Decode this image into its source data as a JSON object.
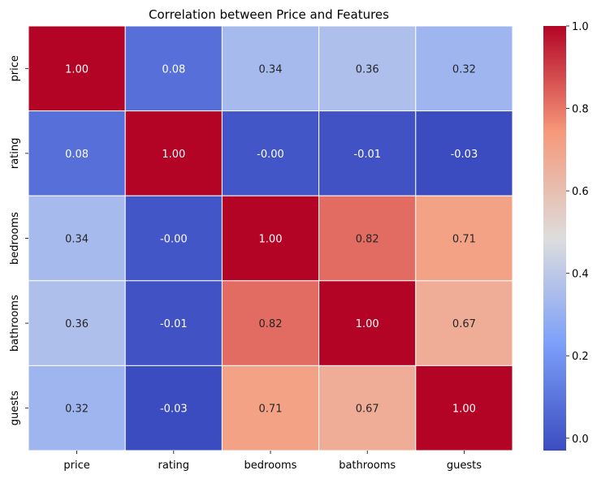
{
  "chart_data": {
    "type": "heatmap",
    "title": "Correlation between Price and Features",
    "row_labels": [
      "price",
      "rating",
      "bedrooms",
      "bathrooms",
      "guests"
    ],
    "col_labels": [
      "price",
      "rating",
      "bedrooms",
      "bathrooms",
      "guests"
    ],
    "values": [
      [
        1.0,
        0.08,
        0.34,
        0.36,
        0.32
      ],
      [
        0.08,
        1.0,
        -0.0,
        -0.01,
        -0.03
      ],
      [
        0.34,
        -0.0,
        1.0,
        0.82,
        0.71
      ],
      [
        0.36,
        -0.01,
        0.82,
        1.0,
        0.67
      ],
      [
        0.32,
        -0.03,
        0.71,
        0.67,
        1.0
      ]
    ],
    "cell_text": [
      [
        "1.00",
        "0.08",
        "0.34",
        "0.36",
        "0.32"
      ],
      [
        "0.08",
        "1.00",
        "-0.00",
        "-0.01",
        "-0.03"
      ],
      [
        "0.34",
        "-0.00",
        "1.00",
        "0.82",
        "0.71"
      ],
      [
        "0.36",
        "-0.01",
        "0.82",
        "1.00",
        "0.67"
      ],
      [
        "0.32",
        "-0.03",
        "0.71",
        "0.67",
        "1.00"
      ]
    ],
    "colormap": "coolwarm",
    "vmin": -0.03,
    "vmax": 1.0,
    "colorbar_ticks": [
      "0.0",
      "0.2",
      "0.4",
      "0.6",
      "0.8",
      "1.0"
    ],
    "colorbar_tick_values": [
      0.0,
      0.2,
      0.4,
      0.6,
      0.8,
      1.0
    ]
  }
}
